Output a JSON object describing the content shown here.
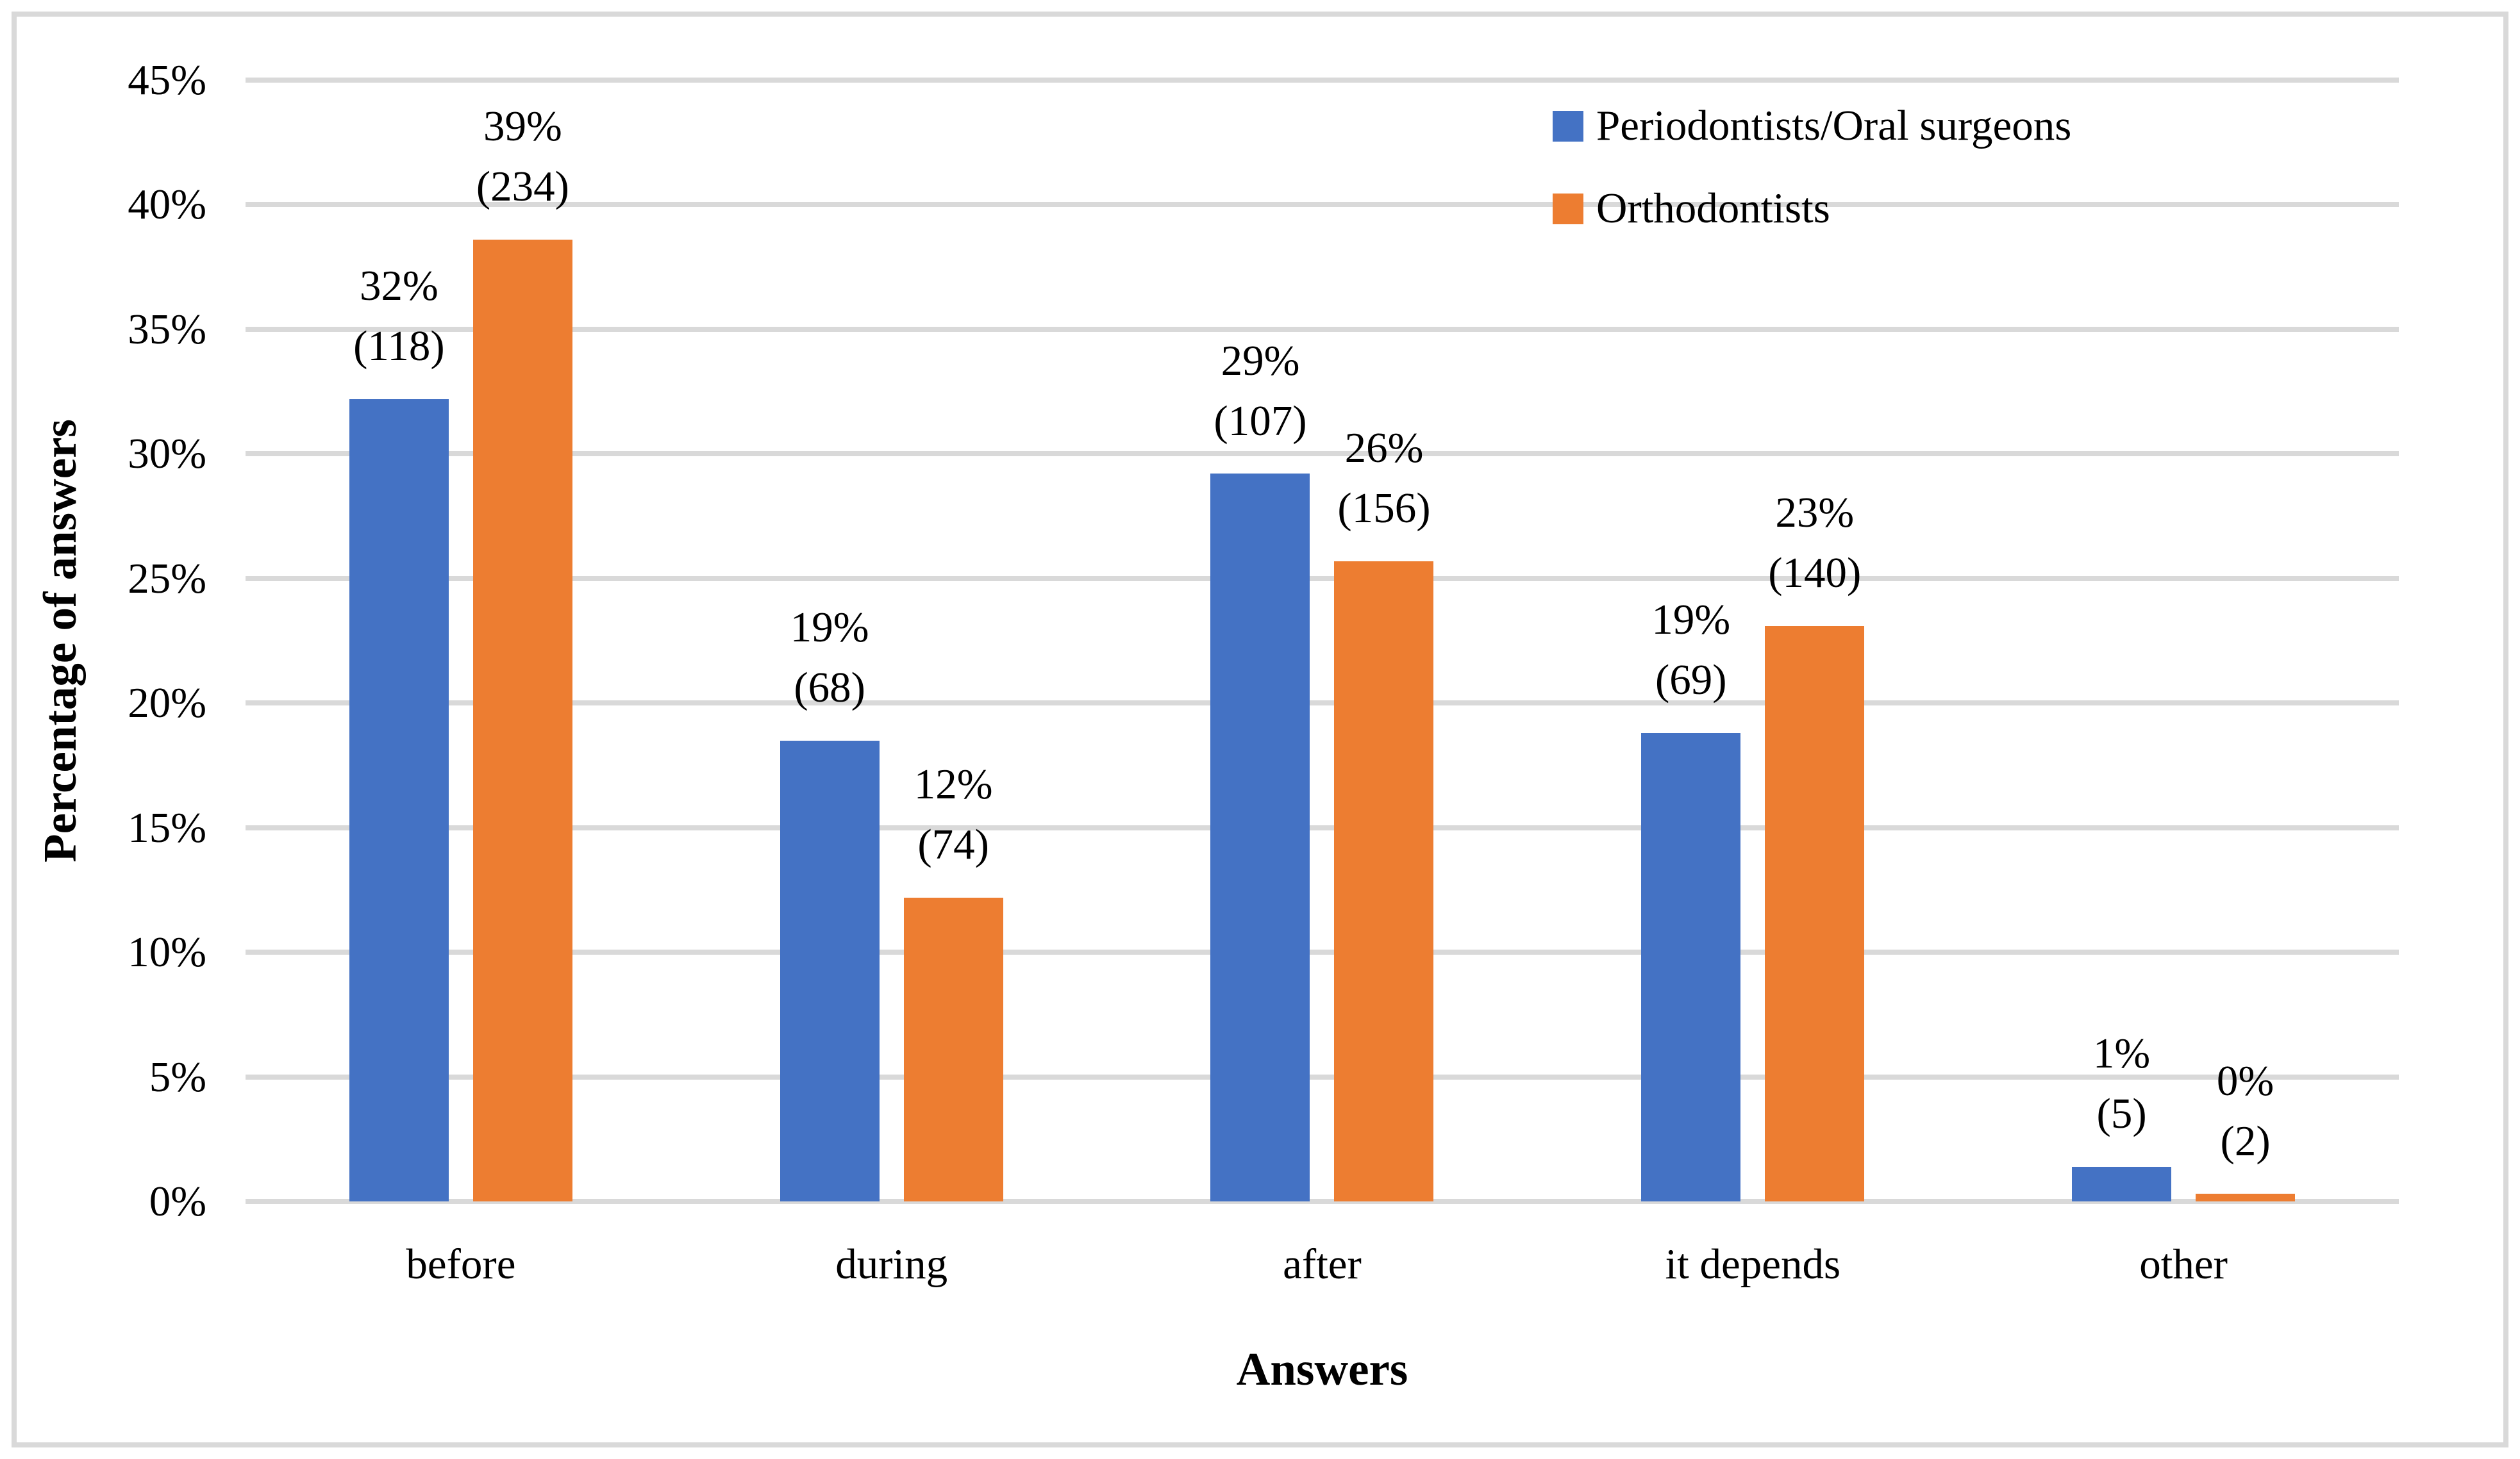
{
  "figure": {
    "background": "#FFFFFF",
    "frame_color": "#D9D9D9"
  },
  "chart_data": {
    "type": "bar",
    "title": "",
    "xlabel": "Answers",
    "ylabel": "Percentage of answers",
    "categories": [
      "before",
      "during",
      "after",
      "it depends",
      "other"
    ],
    "series": [
      {
        "name": "Periodontists/Oral surgeons",
        "color": "#4472C4",
        "values_pct": [
          32.2,
          18.5,
          29.2,
          18.8,
          1.4
        ],
        "counts": [
          118,
          68,
          107,
          69,
          5
        ],
        "percent_labels": [
          "32%",
          "19%",
          "29%",
          "19%",
          "1%"
        ],
        "count_labels": [
          "(118)",
          "(68)",
          "(107)",
          "(69)",
          "(5)"
        ]
      },
      {
        "name": "Orthodontists",
        "color": "#ED7D31",
        "values_pct": [
          38.6,
          12.2,
          25.7,
          23.1,
          0.3
        ],
        "counts": [
          234,
          74,
          156,
          140,
          2
        ],
        "percent_labels": [
          "39%",
          "12%",
          "26%",
          "23%",
          "0%"
        ],
        "count_labels": [
          "(234)",
          "(74)",
          "(156)",
          "(140)",
          "(2)"
        ]
      }
    ],
    "y_axis": {
      "min": 0,
      "max": 45,
      "step": 5,
      "tick_labels": [
        "0%",
        "5%",
        "10%",
        "15%",
        "20%",
        "25%",
        "30%",
        "35%",
        "40%",
        "45%"
      ]
    },
    "legend": {
      "position": "top-right",
      "entries": [
        "Periodontists/Oral surgeons",
        "Orthodontists"
      ]
    },
    "grid": "horizontal",
    "gridline_color": "#D9D9D9",
    "text_color": "#000000"
  }
}
